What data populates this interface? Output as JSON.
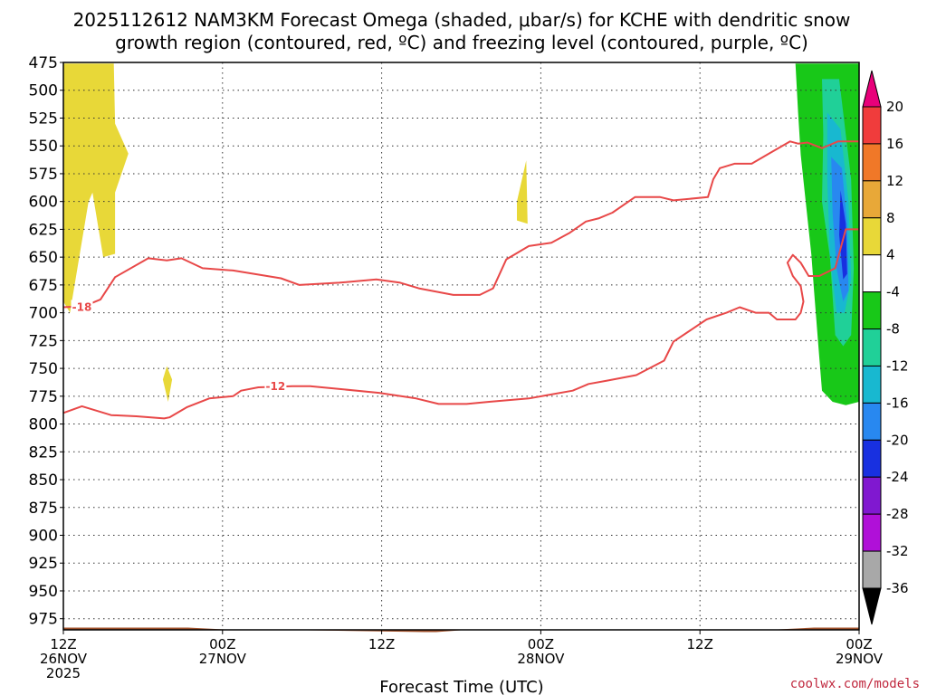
{
  "chart_data": {
    "type": "heatmap",
    "title_line1": "2025112612 NAM3KM Forecast Omega (shaded, μbar/s) for KCHE with dendritic snow",
    "title_line2": "growth region (contoured, red, ºC) and freezing level (contoured, purple, ºC)",
    "xlabel": "Forecast Time (UTC)",
    "credit": "coolwx.com/models",
    "y_axis": {
      "ticks": [
        475,
        500,
        525,
        550,
        575,
        600,
        625,
        650,
        675,
        700,
        725,
        750,
        775,
        800,
        825,
        850,
        875,
        900,
        925,
        950,
        975
      ],
      "range": [
        475,
        985
      ],
      "inverted": true
    },
    "x_axis": {
      "range_hours": [
        0,
        60
      ],
      "ticks": [
        {
          "hour": 0,
          "line1": "12Z",
          "line2": "26NOV",
          "line3": "2025"
        },
        {
          "hour": 12,
          "line1": "00Z",
          "line2": "27NOV",
          "line3": ""
        },
        {
          "hour": 24,
          "line1": "12Z",
          "line2": "",
          "line3": ""
        },
        {
          "hour": 36,
          "line1": "00Z",
          "line2": "28NOV",
          "line3": ""
        },
        {
          "hour": 48,
          "line1": "12Z",
          "line2": "",
          "line3": ""
        },
        {
          "hour": 60,
          "line1": "00Z",
          "line2": "29NOV",
          "line3": ""
        }
      ]
    },
    "colorbar": {
      "labels": [
        20,
        16,
        12,
        8,
        4,
        -4,
        -8,
        -12,
        -16,
        -20,
        -24,
        -28,
        -32,
        -36
      ],
      "bins": [
        {
          "color": "#e8007a"
        },
        {
          "color": "#f03c3c"
        },
        {
          "color": "#f07828"
        },
        {
          "color": "#e8a838"
        },
        {
          "color": "#e8d838"
        },
        {
          "color": "#ffffff"
        },
        {
          "color": "#18c818"
        },
        {
          "color": "#20d098"
        },
        {
          "color": "#18b8d0"
        },
        {
          "color": "#2888f0"
        },
        {
          "color": "#1830e0"
        },
        {
          "color": "#8018d0"
        },
        {
          "color": "#b010d8"
        },
        {
          "color": "#a8a8a8"
        },
        {
          "color": "#000000"
        }
      ]
    },
    "shaded_regions": [
      {
        "value_bin": "4 to 8",
        "color": "#e8d838",
        "points": [
          [
            0.0,
            476
          ],
          [
            3.8,
            476
          ],
          [
            3.9,
            530
          ],
          [
            4.9,
            557
          ],
          [
            3.9,
            592
          ],
          [
            3.9,
            647
          ],
          [
            3.0,
            650
          ],
          [
            2.2,
            592
          ],
          [
            1.9,
            600
          ],
          [
            0.5,
            700
          ],
          [
            0.0,
            690
          ]
        ]
      },
      {
        "value_bin": "4 to 8",
        "color": "#e8d838",
        "points": [
          [
            7.8,
            748
          ],
          [
            8.2,
            760
          ],
          [
            7.9,
            780
          ],
          [
            7.5,
            760
          ]
        ]
      },
      {
        "value_bin": "4 to 8",
        "color": "#e8d838",
        "points": [
          [
            34.2,
            600
          ],
          [
            34.9,
            563
          ],
          [
            35.0,
            620
          ],
          [
            34.2,
            617
          ]
        ]
      },
      {
        "value_bin": "-4 to -8",
        "color": "#18c818",
        "points": [
          [
            55.2,
            476
          ],
          [
            60.0,
            476
          ],
          [
            60.0,
            780
          ],
          [
            59.0,
            783
          ],
          [
            58.0,
            780
          ],
          [
            57.2,
            770
          ],
          [
            57.0,
            740
          ],
          [
            56.6,
            680
          ],
          [
            56.4,
            648
          ],
          [
            55.6,
            558
          ],
          [
            55.4,
            520
          ]
        ]
      },
      {
        "value_bin": "-8 to -12",
        "color": "#20d098",
        "points": [
          [
            57.2,
            490
          ],
          [
            58.5,
            490
          ],
          [
            59.4,
            580
          ],
          [
            59.6,
            660
          ],
          [
            59.4,
            720
          ],
          [
            58.8,
            730
          ],
          [
            58.2,
            720
          ],
          [
            57.8,
            650
          ],
          [
            57.2,
            600
          ],
          [
            57.3,
            540
          ]
        ]
      },
      {
        "value_bin": "-12 to -16",
        "color": "#18b8d0",
        "points": [
          [
            57.6,
            520
          ],
          [
            58.6,
            535
          ],
          [
            59.2,
            600
          ],
          [
            59.4,
            670
          ],
          [
            58.9,
            700
          ],
          [
            58.3,
            700
          ],
          [
            57.8,
            650
          ],
          [
            57.6,
            580
          ]
        ]
      },
      {
        "value_bin": "-16 to -20",
        "color": "#2888f0",
        "points": [
          [
            57.9,
            560
          ],
          [
            58.7,
            570
          ],
          [
            59.1,
            620
          ],
          [
            59.2,
            680
          ],
          [
            58.8,
            690
          ],
          [
            58.3,
            660
          ],
          [
            58.0,
            610
          ]
        ]
      },
      {
        "value_bin": "-20 to -24",
        "color": "#1830e0",
        "points": [
          [
            58.6,
            590
          ],
          [
            59.0,
            620
          ],
          [
            59.1,
            665
          ],
          [
            58.8,
            670
          ],
          [
            58.5,
            630
          ]
        ]
      }
    ],
    "contours": [
      {
        "label": "-18",
        "label_hour": 1.4,
        "label_p": 695,
        "points": [
          [
            0,
            695
          ],
          [
            1.6,
            694
          ],
          [
            2.8,
            688
          ],
          [
            3.9,
            668
          ],
          [
            6.4,
            651
          ],
          [
            7.8,
            653
          ],
          [
            8.9,
            651
          ],
          [
            10.5,
            660
          ],
          [
            12.8,
            662
          ],
          [
            16.4,
            669
          ],
          [
            17.8,
            675
          ],
          [
            20.8,
            673
          ],
          [
            23.6,
            670
          ],
          [
            25.4,
            673
          ],
          [
            26.8,
            678
          ],
          [
            29.4,
            684
          ],
          [
            31.4,
            684
          ],
          [
            32.4,
            678
          ],
          [
            33.4,
            652
          ],
          [
            35.1,
            640
          ],
          [
            36.8,
            637
          ],
          [
            38.2,
            628
          ],
          [
            39.4,
            618
          ],
          [
            40.4,
            615
          ],
          [
            41.4,
            610
          ],
          [
            43.1,
            596
          ],
          [
            45.0,
            596
          ],
          [
            46.0,
            599
          ],
          [
            48.6,
            596
          ],
          [
            49.0,
            580
          ],
          [
            49.5,
            570
          ],
          [
            50.6,
            566
          ],
          [
            51.9,
            566
          ],
          [
            53.2,
            557
          ],
          [
            54.8,
            546
          ],
          [
            55.4,
            548
          ],
          [
            56.1,
            547
          ],
          [
            57.2,
            552
          ],
          [
            57.8,
            549
          ],
          [
            58.4,
            546
          ],
          [
            60.0,
            546
          ]
        ]
      },
      {
        "label": "-12",
        "label_hour": 16.0,
        "label_p": 766,
        "points": [
          [
            0,
            790
          ],
          [
            1.4,
            784
          ],
          [
            3.6,
            792
          ],
          [
            5.5,
            793
          ],
          [
            7.6,
            795
          ],
          [
            8.0,
            794
          ],
          [
            9.3,
            785
          ],
          [
            11.0,
            777
          ],
          [
            12.8,
            775
          ],
          [
            13.4,
            770
          ],
          [
            14.7,
            767
          ],
          [
            17.3,
            766
          ],
          [
            18.6,
            766
          ],
          [
            21.2,
            769
          ],
          [
            23.8,
            772
          ],
          [
            26.6,
            777
          ],
          [
            28.3,
            782
          ],
          [
            30.4,
            782
          ],
          [
            32.1,
            780
          ],
          [
            35.1,
            777
          ],
          [
            36.5,
            774
          ],
          [
            38.4,
            770
          ],
          [
            39.6,
            764
          ],
          [
            41.0,
            761
          ],
          [
            43.2,
            756
          ],
          [
            45.3,
            743
          ],
          [
            46.0,
            726
          ],
          [
            48.5,
            706
          ],
          [
            50.0,
            700
          ],
          [
            51.0,
            695
          ],
          [
            52.2,
            700
          ],
          [
            53.2,
            700
          ],
          [
            53.8,
            706
          ],
          [
            55.2,
            706
          ],
          [
            55.6,
            700
          ],
          [
            55.8,
            690
          ],
          [
            55.6,
            676
          ],
          [
            55.0,
            667
          ],
          [
            54.6,
            655
          ],
          [
            55.0,
            648
          ],
          [
            55.6,
            655
          ],
          [
            56.2,
            667
          ],
          [
            57.0,
            667
          ],
          [
            58.2,
            660
          ],
          [
            59.0,
            625
          ],
          [
            60.0,
            625
          ]
        ]
      }
    ],
    "terrain": {
      "color": "#a0522d",
      "points": [
        [
          0,
          983
        ],
        [
          9.4,
          983
        ],
        [
          12.8,
          985
        ],
        [
          16.1,
          985
        ],
        [
          27.2,
          987
        ],
        [
          28.1,
          987
        ],
        [
          30.4,
          985
        ],
        [
          33.4,
          985
        ],
        [
          36.4,
          985
        ],
        [
          52.2,
          985
        ],
        [
          53.2,
          985
        ],
        [
          56.6,
          983
        ],
        [
          60.0,
          983
        ]
      ]
    }
  }
}
